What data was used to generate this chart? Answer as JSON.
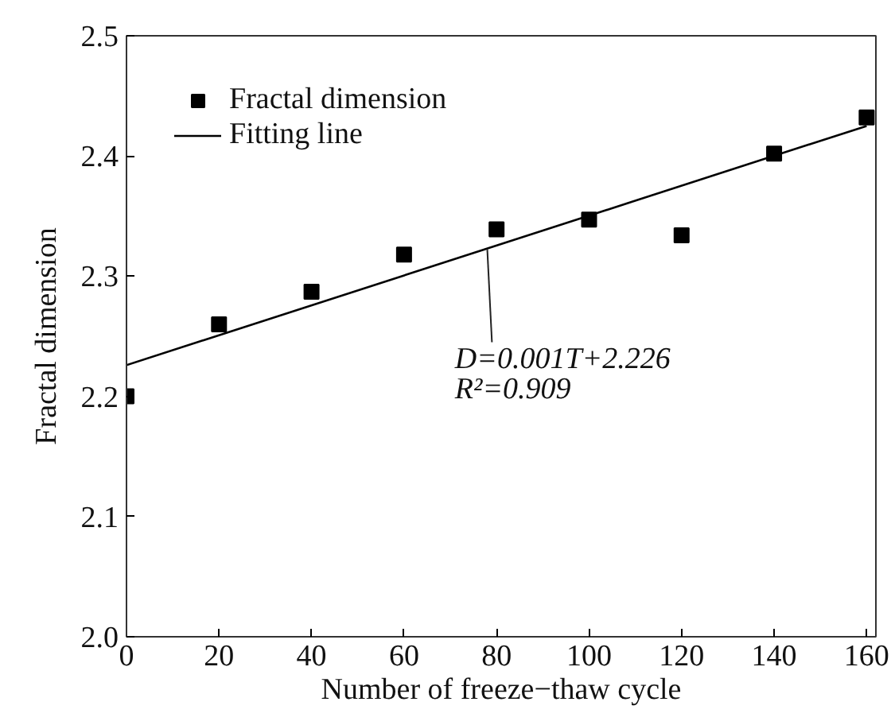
{
  "chart_data": {
    "type": "scatter",
    "xlabel": "Number of freeze−thaw cycle",
    "ylabel": "Fractal dimension",
    "x": [
      0,
      20,
      40,
      60,
      80,
      100,
      120,
      140,
      160
    ],
    "series": [
      {
        "name": "Fractal dimension",
        "color": "#000000",
        "marker": "square",
        "values": [
          2.2,
          2.26,
          2.287,
          2.318,
          2.339,
          2.347,
          2.334,
          2.402,
          2.432
        ]
      },
      {
        "name": "Fitting line",
        "type": "line",
        "color": "#000000",
        "line_style": "solid",
        "x": [
          0,
          160
        ],
        "values": [
          2.226,
          2.425
        ]
      }
    ],
    "annotations": [
      {
        "text": "D=0.001T+2.226",
        "x": 78,
        "y": 2.322
      },
      "R²=0.909"
    ],
    "xlim": [
      0,
      162
    ],
    "ylim": [
      2.0,
      2.5
    ],
    "xticks": [
      0,
      20,
      40,
      60,
      80,
      100,
      120,
      140,
      160
    ],
    "yticks": [
      {
        "value": 2.0,
        "label": "2.0"
      },
      2.1,
      2.2,
      2.3,
      2.4,
      2.5
    ],
    "grid": false,
    "legend": "top left"
  }
}
